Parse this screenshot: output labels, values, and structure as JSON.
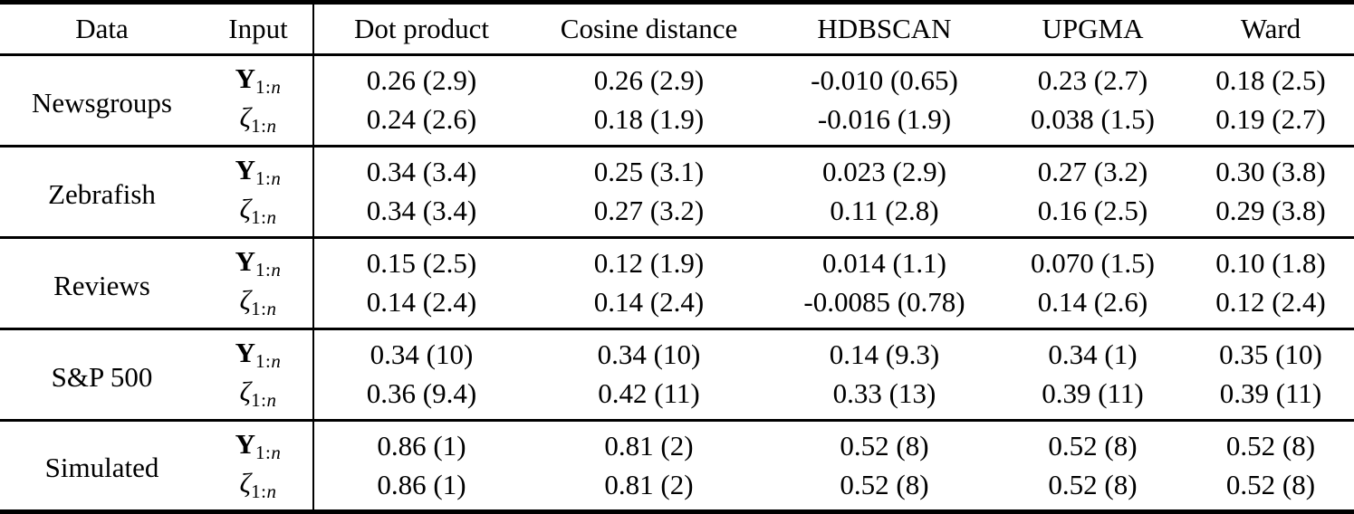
{
  "table": {
    "columns": [
      {
        "label": "Data",
        "key": "data"
      },
      {
        "label": "Input",
        "key": "input"
      },
      {
        "label": "Dot product",
        "key": "dot-product"
      },
      {
        "label": "Cosine distance",
        "key": "cosine-distance"
      },
      {
        "label": "HDBSCAN",
        "key": "hdbscan"
      },
      {
        "label": "UPGMA",
        "key": "upgma"
      },
      {
        "label": "Ward",
        "key": "ward"
      }
    ],
    "input_rows": [
      {
        "base": "Y",
        "style": "bold",
        "sub_digits": "1:",
        "sub_var": "n"
      },
      {
        "base": "ζ",
        "style": "italic",
        "sub_digits": "1:",
        "sub_var": "n"
      }
    ],
    "groups": [
      {
        "dataset": "Newsgroups",
        "rows": [
          [
            "0.26 (2.9)",
            "0.26 (2.9)",
            "-0.010 (0.65)",
            "0.23 (2.7)",
            "0.18 (2.5)"
          ],
          [
            "0.24 (2.6)",
            "0.18 (1.9)",
            "-0.016 (1.9)",
            "0.038 (1.5)",
            "0.19 (2.7)"
          ]
        ]
      },
      {
        "dataset": "Zebrafish",
        "rows": [
          [
            "0.34 (3.4)",
            "0.25 (3.1)",
            "0.023 (2.9)",
            "0.27 (3.2)",
            "0.30 (3.8)"
          ],
          [
            "0.34 (3.4)",
            "0.27 (3.2)",
            "0.11 (2.8)",
            "0.16 (2.5)",
            "0.29 (3.8)"
          ]
        ]
      },
      {
        "dataset": "Reviews",
        "rows": [
          [
            "0.15 (2.5)",
            "0.12 (1.9)",
            "0.014 (1.1)",
            "0.070 (1.5)",
            "0.10 (1.8)"
          ],
          [
            "0.14 (2.4)",
            "0.14 (2.4)",
            "-0.0085 (0.78)",
            "0.14 (2.6)",
            "0.12 (2.4)"
          ]
        ]
      },
      {
        "dataset": "S&P 500",
        "rows": [
          [
            "0.34 (10)",
            "0.34 (10)",
            "0.14 (9.3)",
            "0.34 (1)",
            "0.35 (10)"
          ],
          [
            "0.36 (9.4)",
            "0.42 (11)",
            "0.33 (13)",
            "0.39 (11)",
            "0.39 (11)"
          ]
        ]
      },
      {
        "dataset": "Simulated",
        "rows": [
          [
            "0.86 (1)",
            "0.81 (2)",
            "0.52 (8)",
            "0.52 (8)",
            "0.52 (8)"
          ],
          [
            "0.86 (1)",
            "0.81 (2)",
            "0.52 (8)",
            "0.52 (8)",
            "0.52 (8)"
          ]
        ]
      }
    ]
  }
}
